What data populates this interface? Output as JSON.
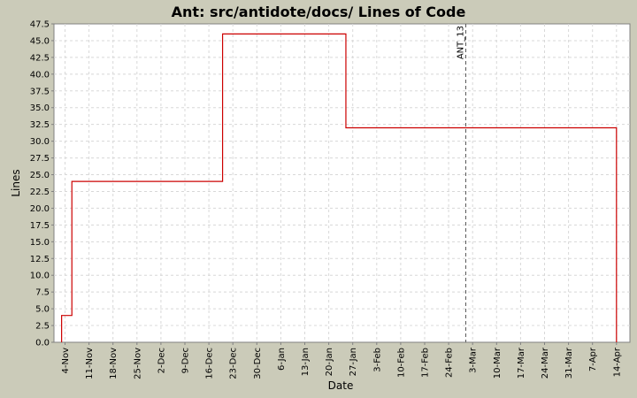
{
  "chart_data": {
    "type": "line",
    "title": "Ant: src/antidote/docs/ Lines of Code",
    "xlabel": "Date",
    "ylabel": "Lines",
    "ylim": [
      0,
      47.5
    ],
    "y_ticks": [
      "0.0",
      "2.5",
      "5.0",
      "7.5",
      "10.0",
      "12.5",
      "15.0",
      "17.5",
      "20.0",
      "22.5",
      "25.0",
      "27.5",
      "30.0",
      "32.5",
      "35.0",
      "37.5",
      "40.0",
      "42.5",
      "45.0",
      "47.5"
    ],
    "x_ticks": [
      "4-Nov",
      "11-Nov",
      "18-Nov",
      "25-Nov",
      "2-Dec",
      "9-Dec",
      "16-Dec",
      "23-Dec",
      "30-Dec",
      "6-Jan",
      "13-Jan",
      "20-Jan",
      "27-Jan",
      "3-Feb",
      "10-Feb",
      "17-Feb",
      "24-Feb",
      "3-Mar",
      "10-Mar",
      "17-Mar",
      "24-Mar",
      "31-Mar",
      "7-Apr",
      "14-Apr"
    ],
    "grid": true,
    "series": [
      {
        "color": "#cc0000",
        "step": true,
        "points": [
          {
            "x": "3-Nov",
            "y": 0
          },
          {
            "x": "3-Nov",
            "y": 4
          },
          {
            "x": "6-Nov",
            "y": 24
          },
          {
            "x": "20-Dec",
            "y": 46
          },
          {
            "x": "25-Jan",
            "y": 32
          },
          {
            "x": "14-Apr",
            "y": 32
          },
          {
            "x": "14-Apr",
            "y": 0
          }
        ]
      }
    ],
    "annotations": [
      {
        "x": "1-Mar",
        "label": "ANT_13",
        "style": "dashed-vertical"
      }
    ]
  }
}
